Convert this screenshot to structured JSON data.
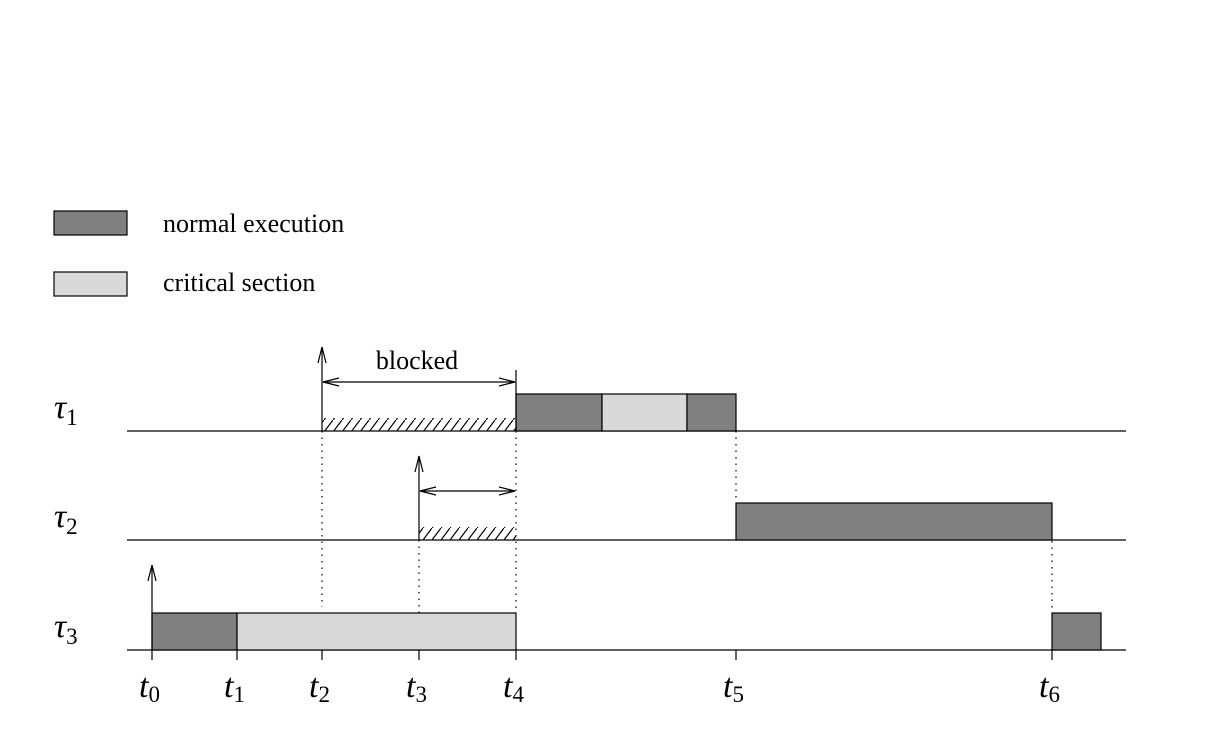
{
  "legend": {
    "normal_label": "normal execution",
    "critical_label": "critical section"
  },
  "colors": {
    "normal": "#808080",
    "critical": "#d9d9d9",
    "line": "#000000"
  },
  "annotations": {
    "blocked": "blocked"
  },
  "tasks": [
    {
      "symbol": "τ",
      "sub": "1"
    },
    {
      "symbol": "τ",
      "sub": "2"
    },
    {
      "symbol": "τ",
      "sub": "3"
    }
  ],
  "times": [
    {
      "symbol": "t",
      "sub": "0"
    },
    {
      "symbol": "t",
      "sub": "1"
    },
    {
      "symbol": "t",
      "sub": "2"
    },
    {
      "symbol": "t",
      "sub": "3"
    },
    {
      "symbol": "t",
      "sub": "4"
    },
    {
      "symbol": "t",
      "sub": "5"
    },
    {
      "symbol": "t",
      "sub": "6"
    }
  ]
}
